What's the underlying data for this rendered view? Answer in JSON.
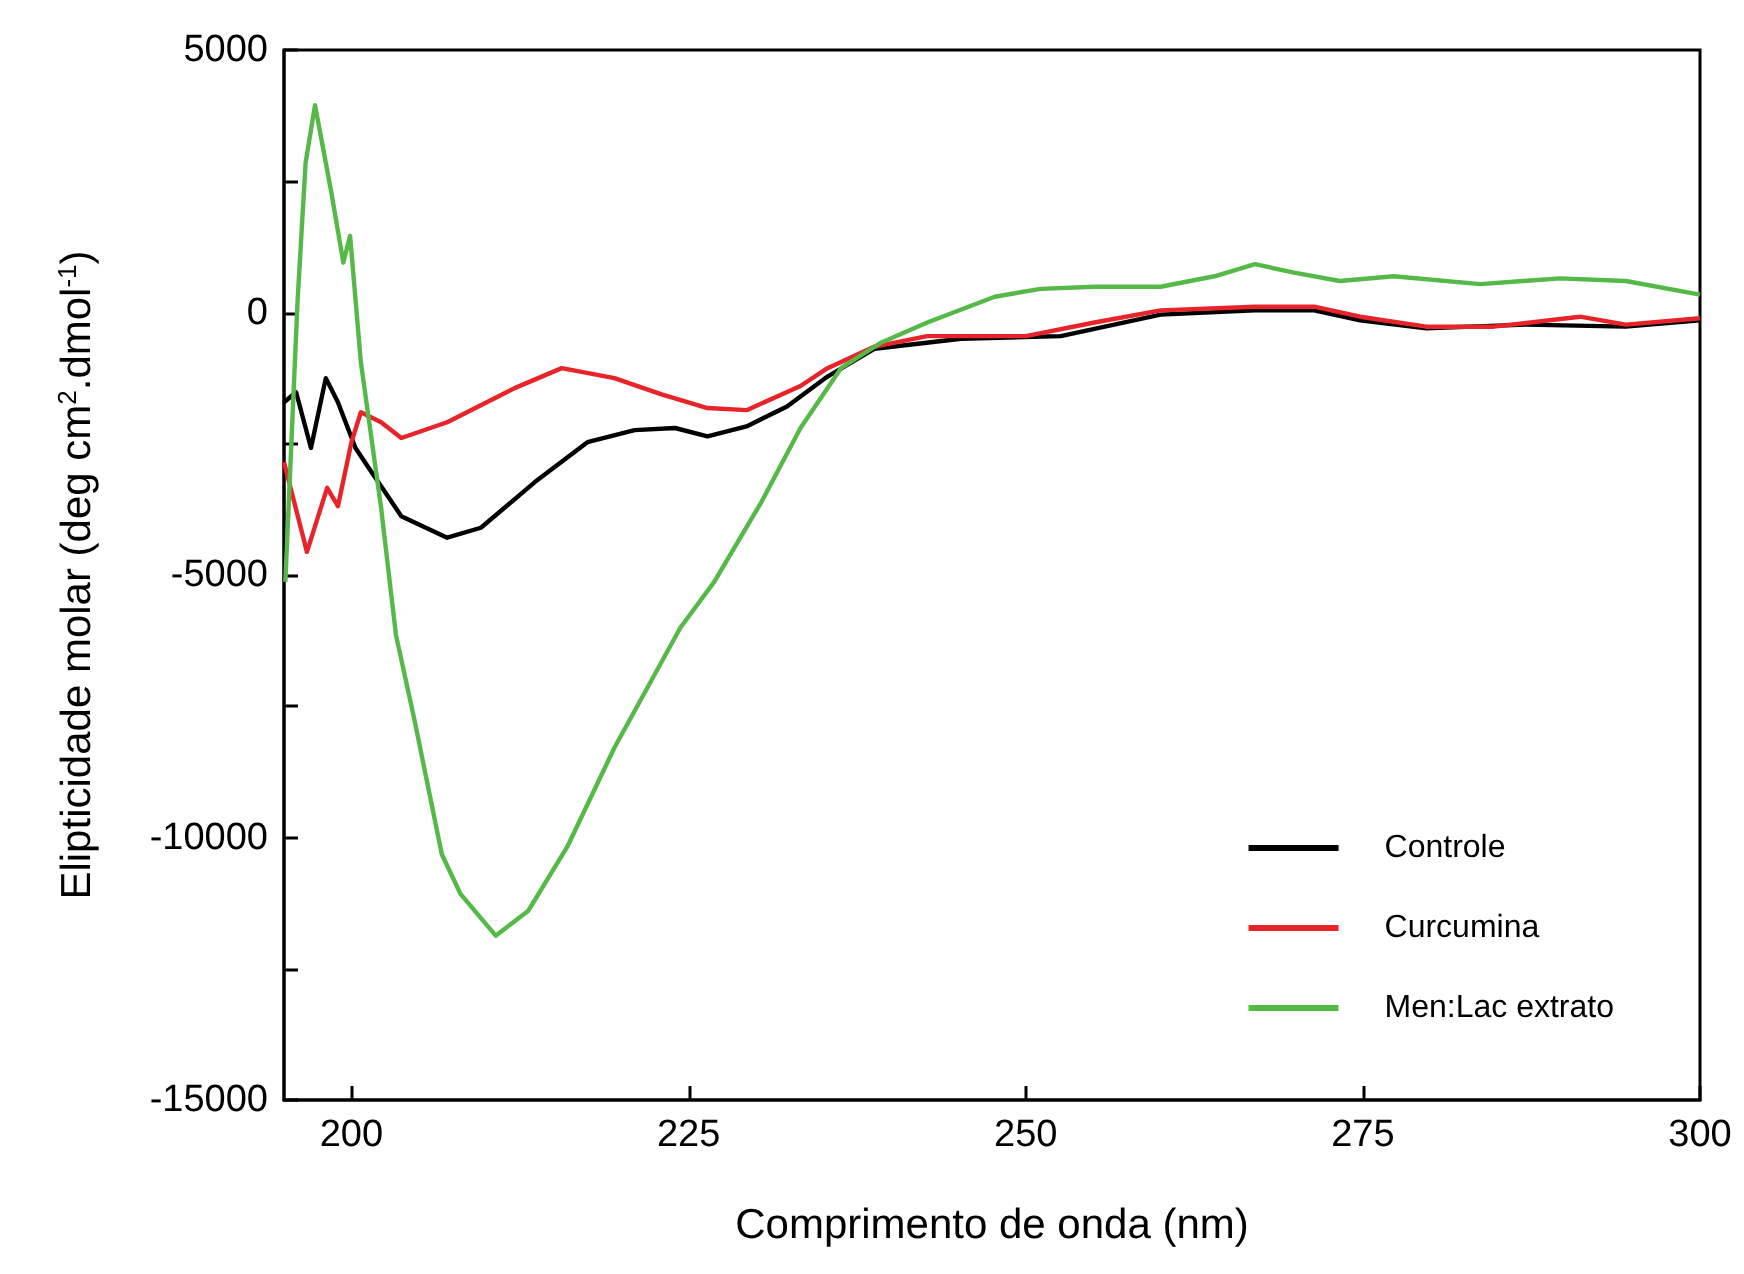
{
  "chart_data": {
    "type": "line",
    "xlabel": "Comprimento de onda (nm)",
    "ylabel": "Elipticidade molar (deg cm$^{2}$.dmol$^{-1}$)",
    "xlim": [
      195,
      300
    ],
    "xticks": [
      200,
      225,
      250,
      275,
      300
    ],
    "ylim": [
      -15000,
      5000
    ],
    "yticks": [
      -15000,
      {
        "value": -12500,
        "label": null
      },
      -10000,
      {
        "value": -7500,
        "label": null
      },
      -5000,
      {
        "value": -2500,
        "label": null
      },
      0,
      {
        "value": 2500,
        "label": null
      },
      5000
    ],
    "grid": false,
    "legend": "bottom right",
    "marker": "none",
    "line_style": "solid",
    "series": [
      {
        "name": "Controle",
        "color": "#000000",
        "x": [
          195,
          195.9,
          197,
          198.1,
          199,
          200.3,
          201.2,
          203.7,
          207.1,
          209.6,
          213.6,
          217.5,
          221,
          224,
          226.4,
          229.3,
          232.3,
          235.3,
          238.8,
          245.2,
          252.6,
          260,
          267,
          271.4,
          274.8,
          279.7,
          287.1,
          294.5,
          300
        ],
        "values": [
          -1710,
          -1520,
          -2580,
          -1250,
          -1710,
          -2580,
          -2930,
          -3880,
          -4290,
          -4100,
          -3230,
          -2470,
          -2240,
          -2200,
          -2360,
          -2170,
          -1790,
          -1220,
          -690,
          -500,
          -450,
          -40,
          40,
          40,
          -150,
          -300,
          -230,
          -270,
          -150
        ]
      },
      {
        "name": "Curcumina",
        "color": "#e8242a",
        "x": [
          195,
          196.7,
          198.2,
          199,
          200,
          200.7,
          202.2,
          203.7,
          207.1,
          212.1,
          215.6,
          219.5,
          223,
          226.4,
          229.3,
          233.3,
          235.3,
          238.8,
          242.7,
          250,
          255.1,
          260,
          267,
          271.4,
          274.8,
          279.7,
          284.7,
          291.1,
          294.5,
          300
        ],
        "values": [
          -2850,
          -4560,
          -3340,
          -3690,
          -2470,
          -1900,
          -2090,
          -2390,
          -2090,
          -1440,
          -1060,
          -1250,
          -1560,
          -1820,
          -1860,
          -1400,
          -1060,
          -650,
          -450,
          -450,
          -190,
          40,
          110,
          110,
          -80,
          -270,
          -270,
          -80,
          -230,
          -110
        ]
      },
      {
        "name": "Men:Lac extrato",
        "color": "#55b948",
        "x": [
          195.1,
          196,
          196.6,
          197.3,
          198.5,
          199.4,
          199.9,
          200.7,
          202.2,
          203.3,
          204.7,
          206.7,
          208.1,
          210.7,
          213.1,
          216,
          219.5,
          224.4,
          226.9,
          230.4,
          233.3,
          236.3,
          239.3,
          242.7,
          247.7,
          251.1,
          255.1,
          260,
          264,
          267,
          269.9,
          273.3,
          277.3,
          283.7,
          289.6,
          294.5,
          300
        ],
        "values": [
          -5130,
          190,
          2850,
          3950,
          2300,
          950,
          1460,
          -950,
          -3720,
          -6140,
          -7790,
          -10320,
          -11080,
          -11870,
          -11400,
          -10180,
          -8290,
          -6000,
          -5130,
          -3610,
          -2200,
          -1060,
          -570,
          -190,
          300,
          450,
          490,
          490,
          690,
          920,
          760,
          600,
          690,
          540,
          650,
          600,
          340
        ]
      }
    ]
  }
}
